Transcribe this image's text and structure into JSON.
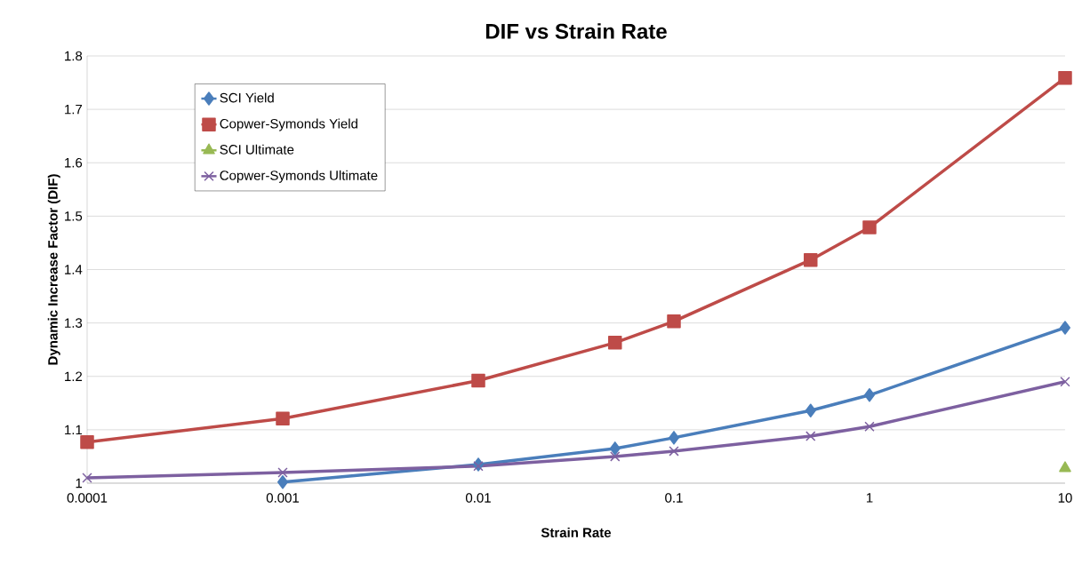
{
  "chart_data": {
    "type": "line",
    "title": "DIF vs Strain Rate",
    "xlabel": "Strain Rate",
    "ylabel": "Dynamic Increase Factor (DIF)",
    "log": "x",
    "x": [
      0.0001,
      0.001,
      0.01,
      0.05,
      0.1,
      0.5,
      1,
      10
    ],
    "xlim": [
      0.0001,
      10
    ],
    "xticks": [
      0.0001,
      0.001,
      0.01,
      0.1,
      1,
      10
    ],
    "ylim": [
      1,
      1.8
    ],
    "yticks": [
      1,
      1.1,
      1.2,
      1.3,
      1.4,
      1.5,
      1.6,
      1.7,
      1.8
    ],
    "grid": "y",
    "legend": "top left",
    "series": [
      {
        "name": "SCI Yield",
        "color": "#4a7ebb",
        "marker": "diamond",
        "values": [
          null,
          1.002,
          1.035,
          1.065,
          1.085,
          1.136,
          1.165,
          1.291
        ]
      },
      {
        "name": "Copwer-Symonds Yield",
        "color": "#be4b48",
        "marker": "square",
        "values": [
          1.077,
          1.121,
          1.192,
          1.263,
          1.303,
          1.418,
          1.479,
          1.759
        ]
      },
      {
        "name": "SCI Ultimate",
        "color": "#98b954",
        "marker": "triangle",
        "values": [
          null,
          null,
          null,
          null,
          null,
          null,
          null,
          1.028
        ]
      },
      {
        "name": "Copwer-Symonds Ultimate",
        "color": "#7d60a0",
        "marker": "cross",
        "values": [
          1.01,
          1.02,
          1.032,
          1.05,
          1.06,
          1.088,
          1.106,
          1.19
        ]
      }
    ]
  }
}
